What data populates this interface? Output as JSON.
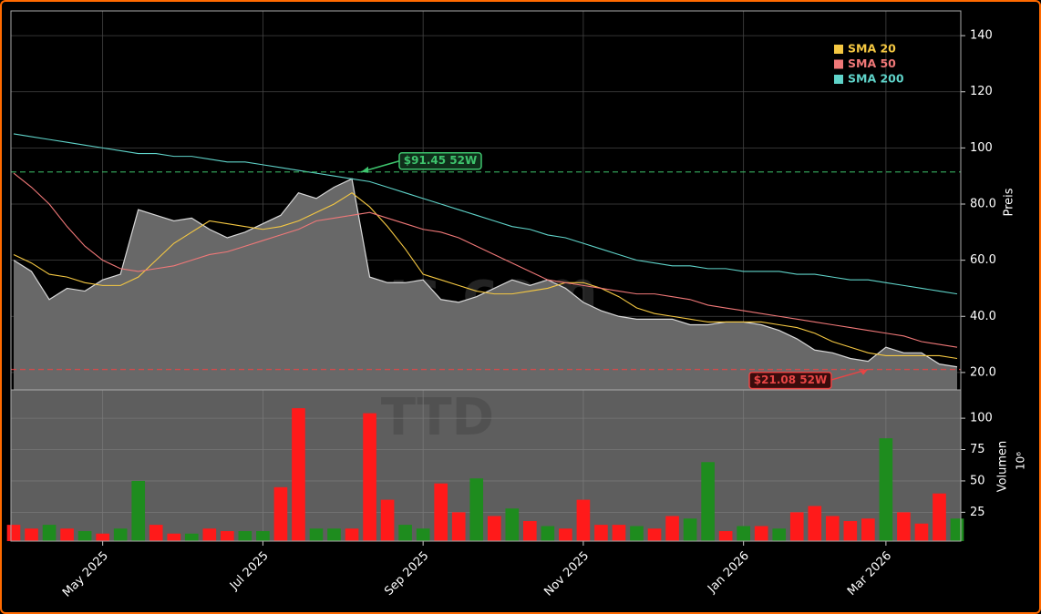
{
  "chart_data": {
    "type": "area",
    "categories": [
      null,
      null,
      null,
      null,
      null,
      "May 2025",
      null,
      null,
      null,
      null,
      null,
      null,
      null,
      null,
      "Jul 2025",
      null,
      null,
      null,
      null,
      null,
      null,
      null,
      null,
      "Sep 2025",
      null,
      null,
      null,
      null,
      null,
      null,
      null,
      null,
      "Nov 2025",
      null,
      null,
      null,
      null,
      null,
      null,
      null,
      null,
      "Jan 2026",
      null,
      null,
      null,
      null,
      null,
      null,
      null,
      "Mar 2026",
      null,
      null,
      null,
      null
    ],
    "values": [
      60,
      56,
      46,
      50,
      49,
      53,
      55,
      78,
      76,
      74,
      75,
      71,
      68,
      70,
      73,
      76,
      84,
      82,
      86,
      89,
      54,
      52,
      52,
      53,
      46,
      45,
      47,
      50,
      53,
      51,
      53,
      50,
      45,
      42,
      40,
      39,
      39,
      39,
      37,
      37,
      38,
      38,
      37,
      35,
      32,
      28,
      27,
      25,
      24,
      29,
      27,
      27,
      23,
      22
    ],
    "color": "#d8d8d8",
    "area_color": "#686868",
    "series": [
      {
        "name": "SMA 20",
        "color": "#f5c842",
        "values": [
          62,
          59,
          55,
          54,
          52,
          51,
          51,
          54,
          60,
          66,
          70,
          74,
          73,
          72,
          71,
          72,
          74,
          77,
          80,
          84,
          79,
          72,
          64,
          55,
          53,
          51,
          49,
          48,
          48,
          49,
          50,
          52,
          52,
          50,
          47,
          43,
          41,
          40,
          39,
          38,
          38,
          38,
          38,
          37,
          36,
          34,
          31,
          29,
          27,
          26,
          26,
          26,
          26,
          25
        ]
      },
      {
        "name": "SMA 50",
        "color": "#f07878",
        "values": [
          91,
          86,
          80,
          72,
          65,
          60,
          57,
          56,
          57,
          58,
          60,
          62,
          63,
          65,
          67,
          69,
          71,
          74,
          75,
          76,
          77,
          75,
          73,
          71,
          70,
          68,
          65,
          62,
          59,
          56,
          53,
          52,
          51,
          50,
          49,
          48,
          48,
          47,
          46,
          44,
          43,
          42,
          41,
          40,
          39,
          38,
          37,
          36,
          35,
          34,
          33,
          31,
          30,
          29
        ]
      },
      {
        "name": "SMA 200",
        "color": "#5fd3c9",
        "values": [
          105,
          104,
          103,
          102,
          101,
          100,
          99,
          98,
          98,
          97,
          97,
          96,
          95,
          95,
          94,
          93,
          92,
          91,
          90,
          89,
          88,
          86,
          84,
          82,
          80,
          78,
          76,
          74,
          72,
          71,
          69,
          68,
          66,
          64,
          62,
          60,
          59,
          58,
          58,
          57,
          57,
          56,
          56,
          56,
          55,
          55,
          54,
          53,
          53,
          52,
          51,
          50,
          49,
          48
        ]
      }
    ],
    "ylim": [
      13.8,
      148.8
    ],
    "yticks": [
      {
        "value": 20,
        "label": "20.0"
      },
      {
        "value": 40,
        "label": "40.0"
      },
      {
        "value": 60,
        "label": "60.0"
      },
      {
        "value": 80,
        "label": "80.0"
      },
      {
        "value": 100,
        "label": "100"
      },
      {
        "value": 120,
        "label": "120"
      },
      {
        "value": 140,
        "label": "140"
      }
    ],
    "ylabel": "Preis",
    "grid": true,
    "legend": "upper right",
    "annotations": [
      {
        "text": "$91.45 52W",
        "value": 91.45,
        "color": "#3ec46d"
      },
      {
        "text": "$21.08 52W",
        "value": 21.08,
        "color": "#e84545"
      }
    ],
    "volume": {
      "values": [
        15,
        12,
        15,
        12,
        10,
        8,
        12,
        50,
        15,
        8,
        8,
        12,
        10,
        10,
        10,
        45,
        108,
        12,
        12,
        12,
        104,
        35,
        15,
        12,
        48,
        25,
        52,
        22,
        28,
        18,
        14,
        12,
        35,
        15,
        15,
        14,
        12,
        22,
        20,
        65,
        10,
        14,
        14,
        12,
        25,
        30,
        22,
        18,
        20,
        84,
        25,
        16,
        40,
        20
      ],
      "colors": [
        "#ff1a1a",
        "#ff1a1a",
        "#1e8c1e",
        "#ff1a1a",
        "#1e8c1e",
        "#ff1a1a",
        "#1e8c1e",
        "#1e8c1e",
        "#ff1a1a",
        "#ff1a1a",
        "#1e8c1e",
        "#ff1a1a",
        "#ff1a1a",
        "#1e8c1e",
        "#1e8c1e",
        "#ff1a1a",
        "#ff1a1a",
        "#1e8c1e",
        "#1e8c1e",
        "#ff1a1a",
        "#ff1a1a",
        "#ff1a1a",
        "#1e8c1e",
        "#1e8c1e",
        "#ff1a1a",
        "#ff1a1a",
        "#1e8c1e",
        "#ff1a1a",
        "#1e8c1e",
        "#ff1a1a",
        "#1e8c1e",
        "#ff1a1a",
        "#ff1a1a",
        "#ff1a1a",
        "#ff1a1a",
        "#1e8c1e",
        "#ff1a1a",
        "#ff1a1a",
        "#1e8c1e",
        "#1e8c1e",
        "#ff1a1a",
        "#1e8c1e",
        "#ff1a1a",
        "#1e8c1e",
        "#ff1a1a",
        "#ff1a1a",
        "#ff1a1a",
        "#ff1a1a",
        "#ff1a1a",
        "#1e8c1e",
        "#ff1a1a",
        "#ff1a1a",
        "#ff1a1a",
        "#1e8c1e"
      ],
      "ylim": [
        2,
        122.6
      ],
      "yticks": [
        25,
        50,
        75,
        100
      ],
      "ylabel": "Volumen",
      "scale_label": "10⁶"
    },
    "watermark": [
      "stocknews.com",
      "TTD"
    ]
  }
}
